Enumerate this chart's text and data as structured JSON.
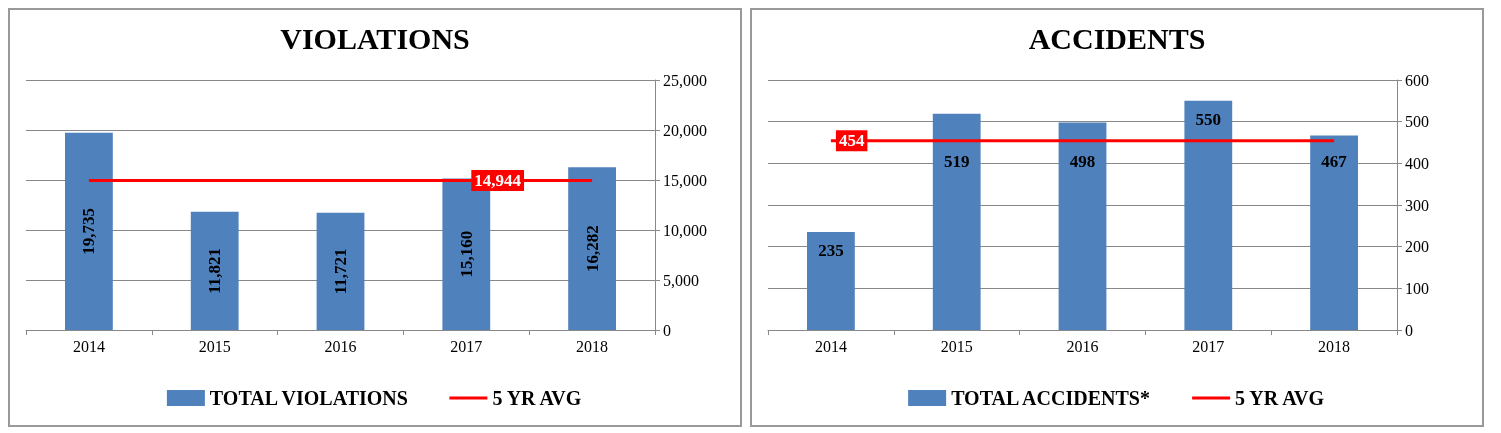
{
  "chart_data": [
    {
      "type": "bar",
      "title": "VIOLATIONS",
      "categories": [
        "2014",
        "2015",
        "2016",
        "2017",
        "2018"
      ],
      "ylim": [
        0,
        25000
      ],
      "yticks": [
        0,
        {
          "value": 5000,
          "label": "5,000"
        },
        {
          "value": 10000,
          "label": "10,000"
        },
        {
          "value": 15000,
          "label": "15,000"
        },
        {
          "value": 20000,
          "label": "20,000"
        },
        {
          "value": 25000,
          "label": "25,000"
        }
      ],
      "grid": "y",
      "legend": "bottom",
      "marker": "none",
      "series": [
        {
          "name": "TOTAL VIOLATIONS",
          "color": "#4f81bd",
          "values": [
            19735,
            11821,
            11721,
            15160,
            16282
          ],
          "value_labels": [
            "19,735",
            "11,821",
            "11,721",
            "15,160",
            "16,282"
          ]
        },
        {
          "name": "5 YR AVG",
          "type": "line",
          "color": "#ff0000",
          "values": [
            14944,
            14944,
            14944,
            14944,
            14944
          ],
          "value_labels": [
            null,
            null,
            null,
            "14,944",
            null
          ]
        }
      ]
    },
    {
      "type": "bar",
      "title": "ACCIDENTS",
      "categories": [
        "2014",
        "2015",
        "2016",
        "2017",
        "2018"
      ],
      "ylim": [
        0,
        600
      ],
      "yticks": [
        0,
        100,
        200,
        300,
        400,
        500,
        600
      ],
      "grid": "y",
      "legend": "bottom",
      "marker": "none",
      "series": [
        {
          "name": "TOTAL ACCIDENTS*",
          "color": "#4f81bd",
          "values": [
            235,
            519,
            498,
            550,
            467
          ],
          "value_labels": [
            "235",
            "519",
            "498",
            "550",
            "467"
          ]
        },
        {
          "name": "5 YR AVG",
          "type": "line",
          "color": "#ff0000",
          "values": [
            454,
            454,
            454,
            454,
            454
          ],
          "value_labels": [
            "454",
            null,
            null,
            null,
            null
          ]
        }
      ]
    }
  ]
}
